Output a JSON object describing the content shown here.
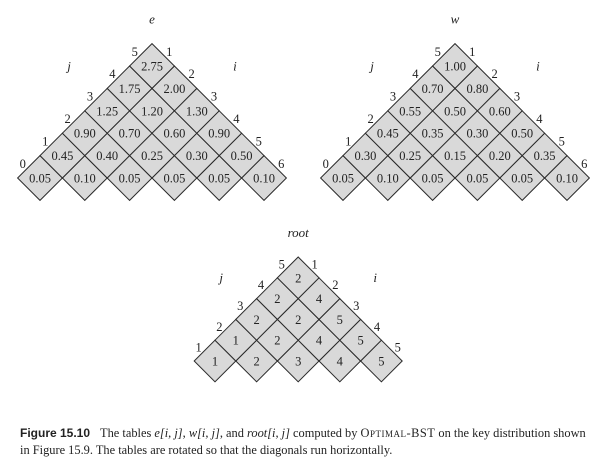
{
  "tables": [
    {
      "name": "e",
      "row_label": "j",
      "col_label": "i",
      "i_labels": [
        "1",
        "2",
        "3",
        "4",
        "5",
        "6"
      ],
      "j_labels": [
        "0",
        "1",
        "2",
        "3",
        "4",
        "5"
      ],
      "rows": [
        [
          "0.05",
          "0.10",
          "0.05",
          "0.05",
          "0.05",
          "0.10"
        ],
        [
          "0.45",
          "0.40",
          "0.25",
          "0.30",
          "0.50"
        ],
        [
          "0.90",
          "0.70",
          "0.60",
          "0.90"
        ],
        [
          "1.25",
          "1.20",
          "1.30"
        ],
        [
          "1.75",
          "2.00"
        ],
        [
          "2.75"
        ]
      ]
    },
    {
      "name": "w",
      "row_label": "j",
      "col_label": "i",
      "i_labels": [
        "1",
        "2",
        "3",
        "4",
        "5",
        "6"
      ],
      "j_labels": [
        "0",
        "1",
        "2",
        "3",
        "4",
        "5"
      ],
      "rows": [
        [
          "0.05",
          "0.10",
          "0.05",
          "0.05",
          "0.05",
          "0.10"
        ],
        [
          "0.30",
          "0.25",
          "0.15",
          "0.20",
          "0.35"
        ],
        [
          "0.45",
          "0.35",
          "0.30",
          "0.50"
        ],
        [
          "0.55",
          "0.50",
          "0.60"
        ],
        [
          "0.70",
          "0.80"
        ],
        [
          "1.00"
        ]
      ]
    },
    {
      "name": "root",
      "row_label": "j",
      "col_label": "i",
      "i_labels": [
        "1",
        "2",
        "3",
        "4",
        "5"
      ],
      "j_labels": [
        "1",
        "2",
        "3",
        "4",
        "5"
      ],
      "rows": [
        [
          "1",
          "2",
          "3",
          "4",
          "5"
        ],
        [
          "1",
          "2",
          "4",
          "5"
        ],
        [
          "2",
          "2",
          "5"
        ],
        [
          "2",
          "4"
        ],
        [
          "2"
        ]
      ]
    }
  ],
  "caption": {
    "label": "Figure 15.10",
    "part1": "The tables ",
    "e_expr": "e[i, j]",
    "sep1": ", ",
    "w_expr": "w[i, j]",
    "sep2": ", and ",
    "root_expr": "root[i, j]",
    "part2": " computed by ",
    "algorithm": "Optimal-BST",
    "part3": " on the key distribution shown in Figure 15.9. The tables are rotated so that the diagonals run horizontally."
  },
  "colors": {
    "cell_fill": "#d9d9d9",
    "cell_stroke": "#2a2a2a",
    "text": "#222222"
  }
}
